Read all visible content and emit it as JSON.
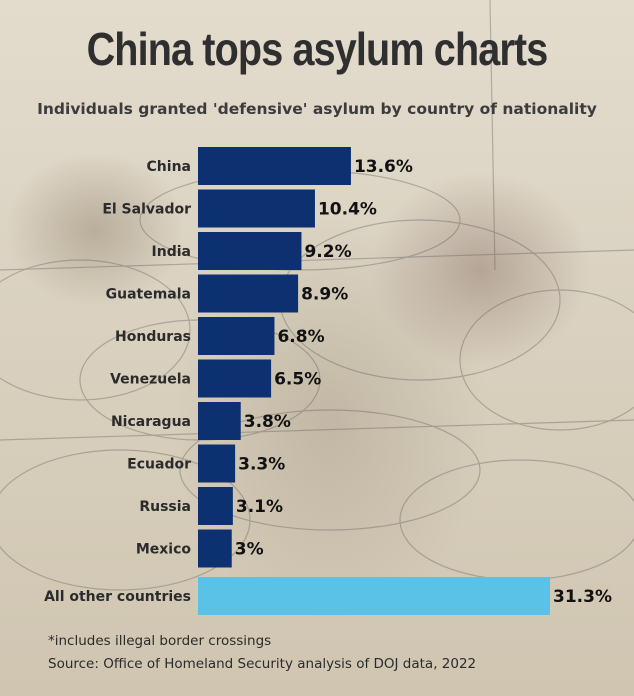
{
  "title": "China tops asylum charts",
  "subtitle": "Individuals granted 'defensive' asylum by country of nationality",
  "footnote": "*includes illegal border crossings",
  "source": "Source: Office of Homeland Security analysis of DOJ data, 2022",
  "colors": {
    "main_bar": "#0d3170",
    "other_bar": "#5ac2e6"
  },
  "chart_data": {
    "type": "bar",
    "orientation": "horizontal",
    "categories": [
      "China",
      "El Salvador",
      "India",
      "Guatemala",
      "Honduras",
      "Venezuela",
      "Nicaragua",
      "Ecuador",
      "Russia",
      "Mexico",
      "All other countries"
    ],
    "values": [
      13.6,
      10.4,
      9.2,
      8.9,
      6.8,
      6.5,
      3.8,
      3.3,
      3.1,
      3.0,
      31.3
    ],
    "value_labels": [
      "13.6%",
      "10.4%",
      "9.2%",
      "8.9%",
      "6.8%",
      "6.5%",
      "3.8%",
      "3.3%",
      "3.1%",
      "3%",
      "31.3%"
    ],
    "unit": "%",
    "highlight_last": true,
    "title": "China tops asylum charts",
    "xlabel": "",
    "ylabel": "",
    "xlim": [
      0,
      31.3
    ],
    "grid": false,
    "legend": "none"
  }
}
